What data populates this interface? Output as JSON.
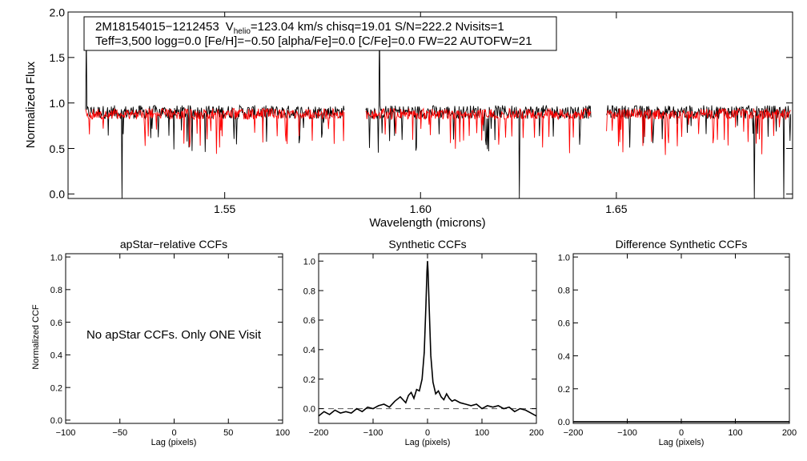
{
  "chart_data": [
    {
      "type": "line",
      "panel": "spectrum",
      "title": "",
      "xlabel": "Wavelength (microns)",
      "ylabel": "Normalized Flux",
      "xlim": [
        1.51,
        1.695
      ],
      "ylim": [
        -0.05,
        2.0
      ],
      "xticks": [
        "1.55",
        "1.60",
        "1.65"
      ],
      "xtick_values": [
        1.55,
        1.6,
        1.65
      ],
      "yticks": [
        "0.0",
        "0.5",
        "1.0",
        "1.5",
        "2.0"
      ],
      "ytick_values": [
        0.0,
        0.5,
        1.0,
        1.5,
        2.0
      ],
      "chip_ranges": [
        [
          1.5145,
          1.5805
        ],
        [
          1.586,
          1.6435
        ],
        [
          1.6475,
          1.6945
        ]
      ],
      "series": [
        {
          "name": "observed spectrum",
          "color": "#000000",
          "level": 0.9,
          "noise": 0.075
        },
        {
          "name": "best-fit synthetic model",
          "color": "#ff0000",
          "level": 0.88,
          "noise": 0.06
        }
      ],
      "annotation": {
        "line1_part1": "2M18154015−1212453",
        "line1_v": "V",
        "line1_sub": "helio",
        "line1_part2": "=123.04 km/s  chisq=19.01  S/N=222.2  Nvisits=1",
        "line2": "Teff=3,500 logg=0.0 [Fe/H]=−0.50 [alpha/Fe]=0.0 [C/Fe]=0.0 FW=22 AUTOFW=21"
      }
    },
    {
      "type": "line",
      "panel": "apstar",
      "title": "apStar−relative CCFs",
      "xlabel": "Lag (pixels)",
      "ylabel": "Normalized CCF",
      "xlim": [
        -100,
        100
      ],
      "ylim": [
        -0.02,
        1.02
      ],
      "xticks": [
        "−100",
        "−50",
        "0",
        "50",
        "100"
      ],
      "xtick_values": [
        -100,
        -50,
        0,
        50,
        100
      ],
      "yticks": [
        "0.0",
        "0.2",
        "0.4",
        "0.6",
        "0.8",
        "1.0"
      ],
      "ytick_values": [
        0.0,
        0.2,
        0.4,
        0.6,
        0.8,
        1.0
      ],
      "message": "No apStar CCFs.  Only ONE Visit",
      "series": []
    },
    {
      "type": "line",
      "panel": "synthetic",
      "title": "Synthetic CCFs",
      "xlabel": "Lag (pixels)",
      "ylabel": "",
      "xlim": [
        -200,
        200
      ],
      "ylim": [
        -0.1,
        1.05
      ],
      "xticks": [
        "−200",
        "−100",
        "0",
        "100",
        "200"
      ],
      "xtick_values": [
        -200,
        -100,
        0,
        100,
        200
      ],
      "yticks": [
        "0.0",
        "0.2",
        "0.4",
        "0.6",
        "0.8",
        "1.0"
      ],
      "ytick_values": [
        0.0,
        0.2,
        0.4,
        0.6,
        0.8,
        1.0
      ],
      "reference_line": {
        "y": 0.0,
        "style": "dashed",
        "color": "#555555"
      },
      "series": [
        {
          "name": "CCF",
          "color": "#000000",
          "peak_lag": 0,
          "peak": 1.0,
          "x": [
            -200,
            -190,
            -180,
            -170,
            -160,
            -150,
            -140,
            -130,
            -120,
            -110,
            -100,
            -90,
            -80,
            -70,
            -60,
            -50,
            -45,
            -40,
            -35,
            -30,
            -25,
            -20,
            -15,
            -10,
            -6,
            -3,
            -1,
            0,
            1,
            3,
            6,
            10,
            15,
            20,
            25,
            30,
            35,
            40,
            45,
            50,
            60,
            70,
            80,
            90,
            100,
            110,
            120,
            130,
            140,
            150,
            160,
            170,
            180,
            190,
            200
          ],
          "y": [
            -0.05,
            -0.02,
            -0.04,
            -0.01,
            -0.03,
            -0.02,
            -0.03,
            0.0,
            -0.02,
            0.01,
            0.0,
            0.02,
            0.03,
            0.01,
            0.05,
            0.08,
            0.06,
            0.04,
            0.09,
            0.11,
            0.07,
            0.13,
            0.12,
            0.2,
            0.38,
            0.7,
            0.93,
            1.0,
            0.93,
            0.7,
            0.36,
            0.18,
            0.1,
            0.12,
            0.08,
            0.06,
            0.1,
            0.07,
            0.05,
            0.06,
            0.04,
            0.03,
            0.02,
            0.03,
            0.0,
            0.02,
            0.01,
            0.02,
            0.0,
            0.01,
            -0.02,
            0.0,
            -0.01,
            -0.03,
            -0.05
          ]
        }
      ]
    },
    {
      "type": "line",
      "panel": "difference",
      "title": "Difference Synthetic CCFs",
      "xlabel": "Lag (pixels)",
      "ylabel": "",
      "xlim": [
        -200,
        200
      ],
      "ylim": [
        -0.01,
        1.02
      ],
      "xticks": [
        "−200",
        "−100",
        "0",
        "100",
        "200"
      ],
      "xtick_values": [
        -200,
        -100,
        0,
        100,
        200
      ],
      "yticks": [
        "0.0",
        "0.2",
        "0.4",
        "0.6",
        "0.8",
        "1.0"
      ],
      "ytick_values": [
        0.0,
        0.2,
        0.4,
        0.6,
        0.8,
        1.0
      ],
      "series": [
        {
          "name": "difference CCF",
          "color": "#000000",
          "x": [
            -200,
            200
          ],
          "y": [
            0.0,
            0.0
          ]
        }
      ]
    }
  ]
}
